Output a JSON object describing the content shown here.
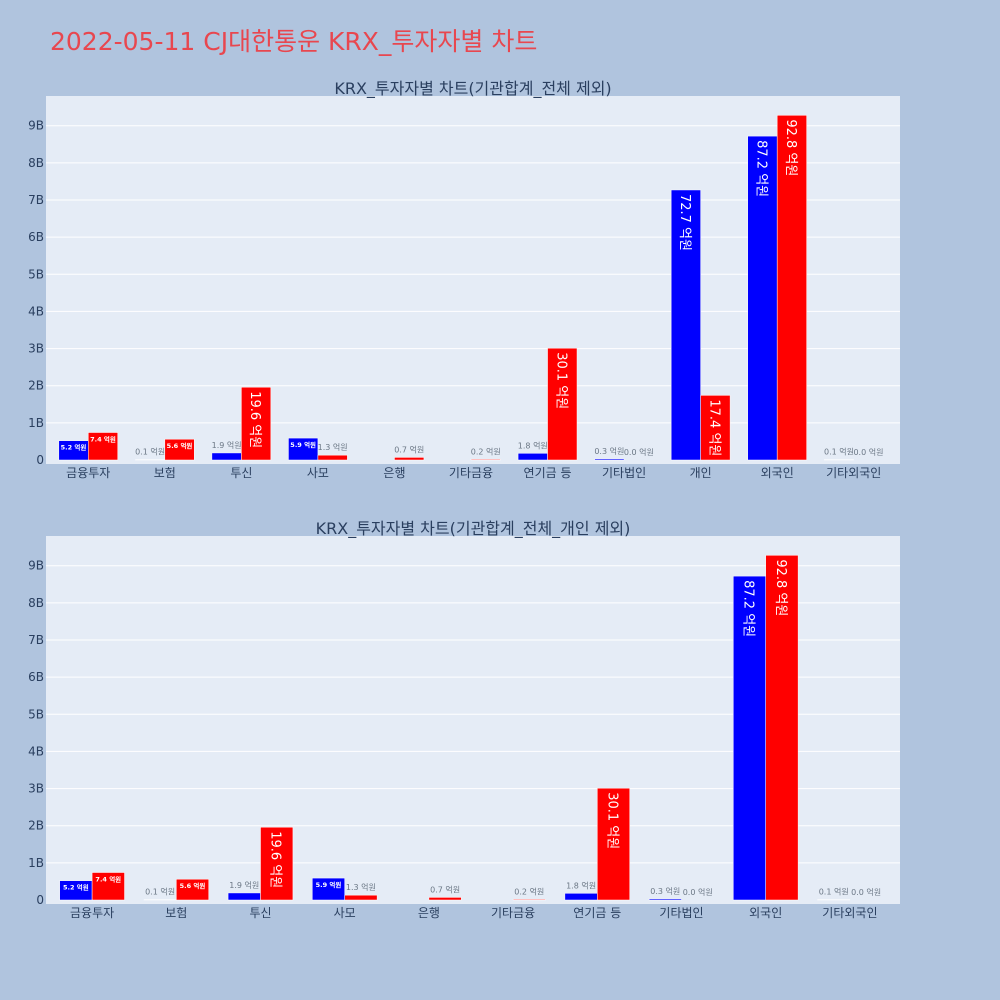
{
  "page": {
    "title": "2022-05-11 CJ대한통운 KRX_투자자별 차트"
  },
  "colors": {
    "background": "#b0c4de",
    "plot_background": "#e5ecf6",
    "title": "#e8474f",
    "series_a": "#0000ff",
    "series_b": "#ff0000"
  },
  "chart_data": [
    {
      "type": "bar",
      "title": "KRX_투자자별 차트(기관합계_전체 제외)",
      "categories": [
        "금융투자",
        "보험",
        "투신",
        "사모",
        "은행",
        "기타금융",
        "연기금 등",
        "기타법인",
        "개인",
        "외국인",
        "기타외국인"
      ],
      "series": [
        {
          "color": "#0000ff",
          "values": [
            0.52,
            0.01,
            0.19,
            0.59,
            0.0,
            0.0,
            0.18,
            0.03,
            7.27,
            8.72,
            0.01
          ],
          "labels": [
            "5.2 억원",
            "0.1 억원",
            "1.9 억원",
            "5.9 억원",
            "",
            "",
            "1.8 억원",
            "0.3 억원",
            "72.7 억원",
            "87.2 억원",
            "0.1 억원"
          ]
        },
        {
          "color": "#ff0000",
          "values": [
            0.74,
            0.56,
            1.96,
            0.13,
            0.07,
            0.02,
            3.01,
            0.0,
            1.74,
            9.28,
            0.0
          ],
          "labels": [
            "7.4 억원",
            "5.6 억원",
            "19.6 억원",
            "1.3 억원",
            "0.7 억원",
            "0.2 억원",
            "30.1 억원",
            "0.0 억원",
            "17.4 억원",
            "92.8 억원",
            "0.0 억원"
          ]
        }
      ],
      "y_ticks": [
        "0",
        "1B",
        "2B",
        "3B",
        "4B",
        "5B",
        "6B",
        "7B",
        "8B",
        "9B"
      ],
      "ylim": [
        0,
        9.8
      ],
      "y_unit": "B",
      "grid": true
    },
    {
      "type": "bar",
      "title": "KRX_투자자별 차트(기관합계_전체_개인 제외)",
      "categories": [
        "금융투자",
        "보험",
        "투신",
        "사모",
        "은행",
        "기타금융",
        "연기금 등",
        "기타법인",
        "외국인",
        "기타외국인"
      ],
      "series": [
        {
          "color": "#0000ff",
          "values": [
            0.52,
            0.01,
            0.19,
            0.59,
            0.0,
            0.0,
            0.18,
            0.03,
            8.72,
            0.01
          ],
          "labels": [
            "5.2 억원",
            "0.1 억원",
            "1.9 억원",
            "5.9 억원",
            "",
            "",
            "1.8 억원",
            "0.3 억원",
            "87.2 억원",
            "0.1 억원"
          ]
        },
        {
          "color": "#ff0000",
          "values": [
            0.74,
            0.56,
            1.96,
            0.13,
            0.07,
            0.02,
            3.01,
            0.0,
            9.28,
            0.0
          ],
          "labels": [
            "7.4 억원",
            "5.6 억원",
            "19.6 억원",
            "1.3 억원",
            "0.7 억원",
            "0.2 억원",
            "30.1 억원",
            "0.0 억원",
            "92.8 억원",
            "0.0 억원"
          ]
        }
      ],
      "y_ticks": [
        "0",
        "1B",
        "2B",
        "3B",
        "4B",
        "5B",
        "6B",
        "7B",
        "8B",
        "9B"
      ],
      "ylim": [
        0,
        9.8
      ],
      "y_unit": "B",
      "grid": true
    }
  ]
}
